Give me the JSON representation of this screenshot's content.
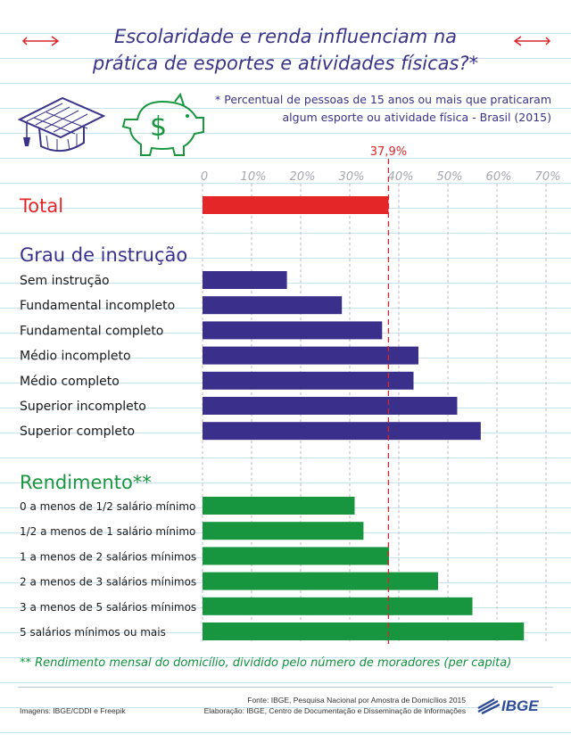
{
  "title_line1": "Escolaridade e renda influenciam na",
  "title_line2": "prática de esportes e atividades físicas?*",
  "subtitle_line1": "* Percentual de pessoas de 15 anos ou mais que praticaram",
  "subtitle_line2": "algum esporte ou atividade física - Brasil (2015)",
  "footnote": "** Rendimento mensal do domicílio, dividido pelo número de moradores (per capita)",
  "fonte": "Fonte:  IBGE, Pesquisa Nacional por Amostra de Domicílios 2015",
  "elaboracao": "Elaboração: IBGE, Centro de Documentação e Disseminação de Informações",
  "imagens": "Imagens: IBGE/CDDI e Freepik",
  "logo_text": "IBGE",
  "colors": {
    "total": "#e52629",
    "instrucao": "#3b2f8c",
    "rendimento": "#17963f",
    "reference": "#d9262a"
  },
  "icons": [
    "graduation-cap-icon",
    "piggy-bank-icon",
    "arrow-left-icon",
    "arrow-right-icon"
  ],
  "chart_data": {
    "type": "bar",
    "orientation": "horizontal",
    "xlim": [
      0,
      70
    ],
    "ticks": [
      "0",
      "10%",
      "20%",
      "30%",
      "40%",
      "50%",
      "60%",
      "70%"
    ],
    "reference_line": {
      "value": 37.9,
      "label": "37,9%"
    },
    "grid": true,
    "groups": [
      {
        "name": "Total",
        "color": "#e52629",
        "categories": [
          "Total"
        ],
        "values": [
          37.9
        ]
      },
      {
        "name": "Grau de instrução",
        "color": "#3b2f8c",
        "categories": [
          "Sem instrução",
          "Fundamental incompleto",
          "Fundamental completo",
          "Médio incompleto",
          "Médio completo",
          "Superior incompleto",
          "Superior completo"
        ],
        "values": [
          17.2,
          28.4,
          36.6,
          44.0,
          43.0,
          51.9,
          56.7
        ]
      },
      {
        "name": "Rendimento**",
        "color": "#17963f",
        "categories": [
          "0 a menos de 1/2 salário mínimo",
          "1/2 a menos de 1 salário mínimo",
          "1 a menos de 2 salários mínimos",
          "2 a menos de 3 salários mínimos",
          "3 a menos de 5 salários mínimos",
          "5 salários mínimos ou mais"
        ],
        "values": [
          31.0,
          32.8,
          38.0,
          48.0,
          55.0,
          65.5
        ]
      }
    ]
  }
}
